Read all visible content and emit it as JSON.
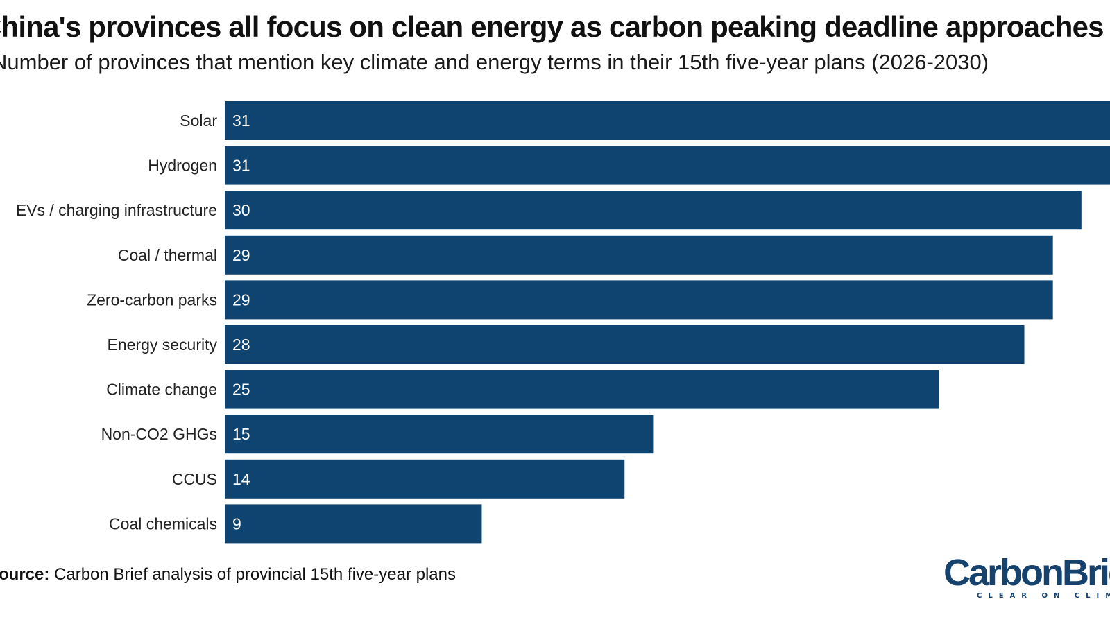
{
  "chart_data": {
    "type": "bar",
    "orientation": "horizontal",
    "title": "China's provinces all focus on clean energy as carbon peaking deadline approaches",
    "subtitle": "Number of provinces that mention key climate and energy terms in their 15th five-year plans (2026-2030)",
    "categories": [
      "Solar",
      "Hydrogen",
      "EVs / charging infrastructure",
      "Coal / thermal",
      "Zero-carbon parks",
      "Energy security",
      "Climate change",
      "Non-CO2 GHGs",
      "CCUS",
      "Coal chemicals"
    ],
    "values": [
      31,
      31,
      30,
      29,
      29,
      28,
      25,
      15,
      14,
      9
    ],
    "xlim": [
      0,
      31
    ],
    "bar_color": "#0f4470",
    "grid": false,
    "data_labels": "inside-start"
  },
  "footer": {
    "source_label": "Source:",
    "source_text": " Carbon Brief analysis of provincial 15th five-year plans"
  },
  "logo": {
    "name": "CarbonBrief",
    "tagline": "CLEAR ON CLIMATE",
    "color": "#16426e"
  }
}
